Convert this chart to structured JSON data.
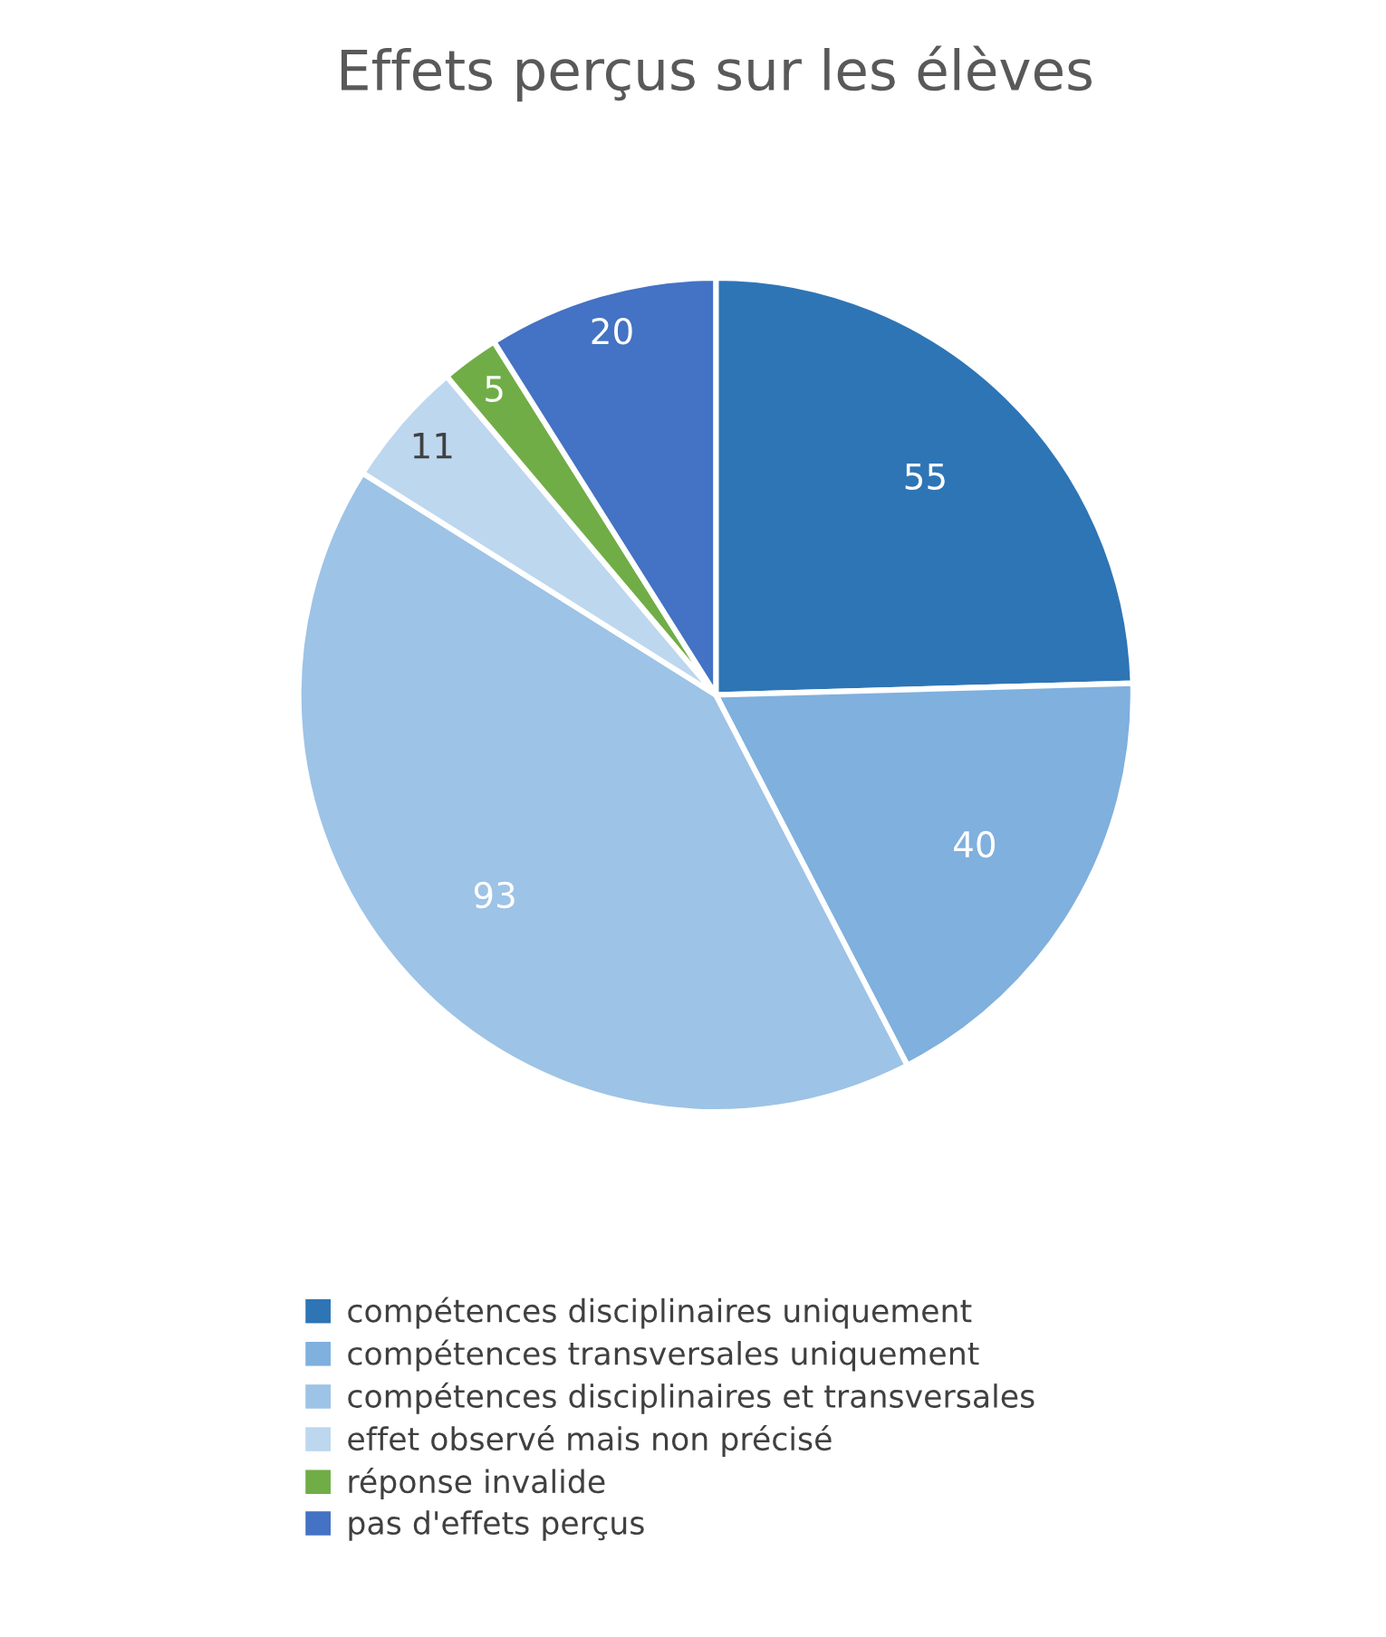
{
  "chart_data": {
    "type": "pie",
    "title": "Effets perçus sur les élèves",
    "categories": [
      "compétences disciplinaires uniquement",
      "compétences transversales uniquement",
      "compétences disciplinaires et transversales",
      "effet observé mais non précisé",
      "réponse invalide",
      "pas d'effets perçus"
    ],
    "values": [
      55,
      40,
      93,
      11,
      5,
      20
    ],
    "colors": [
      "#2e75b6",
      "#7fb0de",
      "#9dc3e6",
      "#bdd7ee",
      "#70ad47",
      "#4472c4"
    ],
    "data_labels": true,
    "legend": "bottom"
  }
}
